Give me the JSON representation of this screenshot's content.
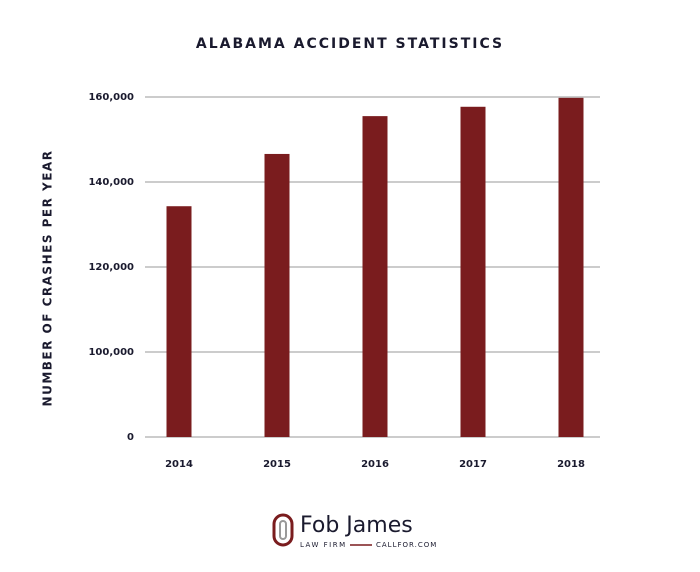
{
  "chart_data": {
    "type": "bar",
    "title": "ALABAMA ACCIDENT STATISTICS",
    "y_label": "NUMBER OF CRASHES PER YEAR",
    "categories": [
      "2014",
      "2015",
      "2016",
      "2017",
      "2018"
    ],
    "values": [
      134300,
      146600,
      155500,
      157700,
      159800
    ],
    "color": "#7a1c1e",
    "ylim": [
      0,
      160000
    ],
    "yticks": [
      0,
      {
        "value": 100000,
        "label": "100,000"
      },
      {
        "value": 120000,
        "label": "120,000"
      },
      {
        "value": 140000,
        "label": "140,000"
      },
      {
        "value": 160000,
        "label": "160,000"
      }
    ],
    "grid": true
  },
  "logo": {
    "name": "Fob James",
    "tagline": "LAW FIRM",
    "site": "CALLFOR.COM"
  }
}
